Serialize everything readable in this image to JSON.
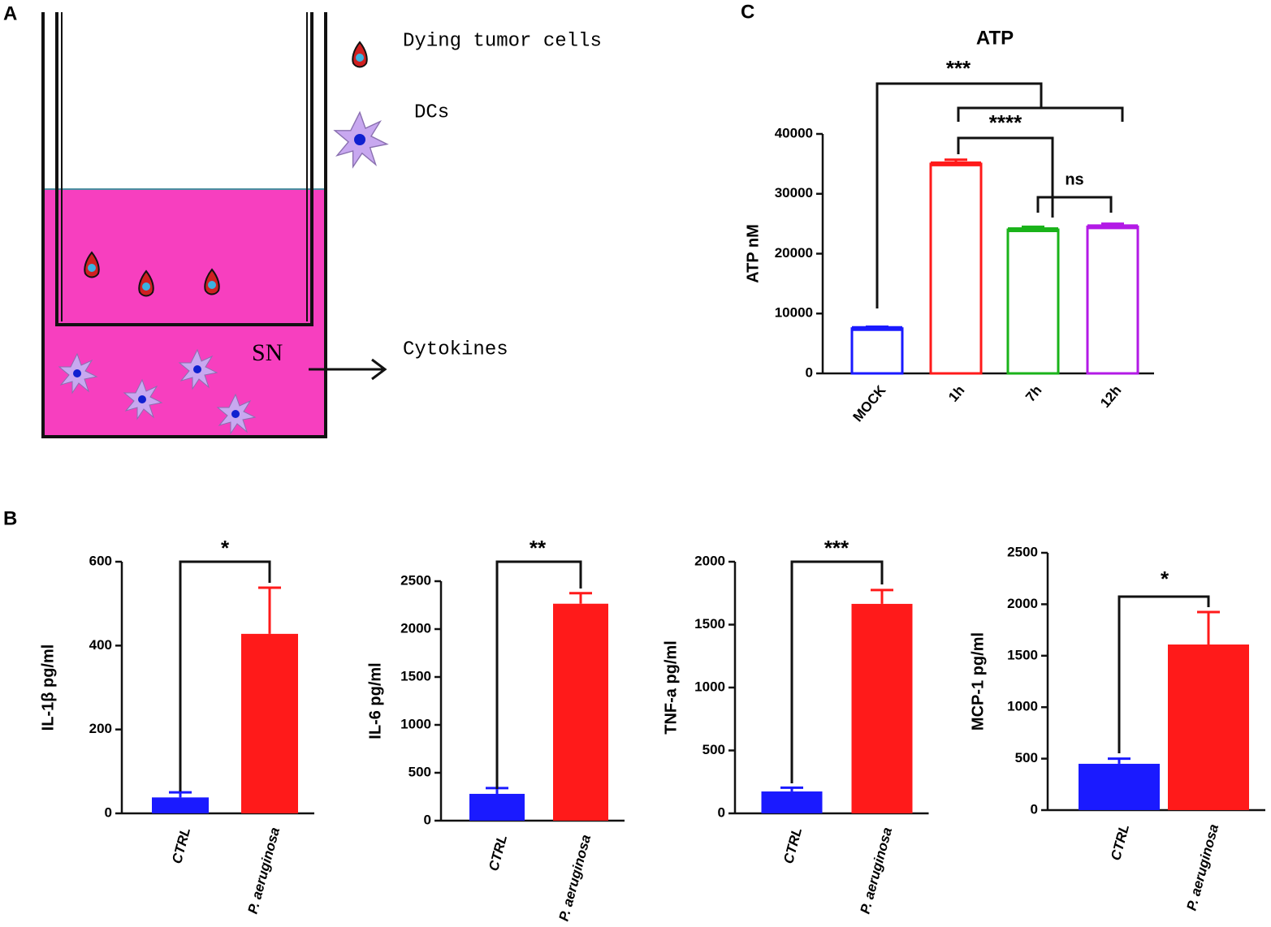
{
  "panel_labels": [
    "A",
    "B",
    "C"
  ],
  "diagram": {
    "labels": [
      "Dying tumor cells",
      "DCs",
      "SN",
      "Cytokines"
    ]
  },
  "chart_data": [
    {
      "type": "bar",
      "title": "ATP",
      "ylabel": "ATP nM",
      "bar_style": "outline",
      "categories": [
        "MOCK",
        "1h",
        "7h",
        "12h"
      ],
      "values": [
        7500,
        35000,
        24000,
        24500
      ],
      "errors": [
        300,
        700,
        500,
        500
      ],
      "colors": [
        "#1a1aff",
        "#ff1a1a",
        "#1ab31a",
        "#b31ae6"
      ],
      "ylim": [
        0,
        40000
      ],
      "yticks": [
        0,
        10000,
        20000,
        30000,
        40000
      ],
      "annotations": [
        "***",
        "****",
        "ns"
      ]
    },
    {
      "type": "bar",
      "ylabel": "IL-1β pg/ml",
      "bar_style": "solid",
      "categories": [
        "CTRL",
        "P. aeruginosa"
      ],
      "values": [
        38,
        428
      ],
      "errors": [
        12,
        110
      ],
      "colors": [
        "#1a1aff",
        "#ff1a1a"
      ],
      "ylim": [
        0,
        600
      ],
      "yticks": [
        0,
        200,
        400,
        600
      ],
      "annotations": [
        "*"
      ]
    },
    {
      "type": "bar",
      "ylabel": "IL-6 pg/ml",
      "bar_style": "solid",
      "categories": [
        "CTRL",
        "P. aeruginosa"
      ],
      "values": [
        280,
        2265
      ],
      "errors": [
        60,
        110
      ],
      "colors": [
        "#1a1aff",
        "#ff1a1a"
      ],
      "ylim": [
        0,
        2500
      ],
      "yticks": [
        0,
        500,
        1000,
        1500,
        2000,
        2500
      ],
      "annotations": [
        "**"
      ]
    },
    {
      "type": "bar",
      "ylabel": "TNF-a pg/ml",
      "bar_style": "solid",
      "categories": [
        "CTRL",
        "P. aeruginosa"
      ],
      "values": [
        174,
        1665
      ],
      "errors": [
        30,
        110
      ],
      "colors": [
        "#1a1aff",
        "#ff1a1a"
      ],
      "ylim": [
        0,
        2000
      ],
      "yticks": [
        0,
        500,
        1000,
        1500,
        2000
      ],
      "annotations": [
        "***"
      ]
    },
    {
      "type": "bar",
      "ylabel": "MCP-1 pg/ml",
      "bar_style": "solid",
      "categories": [
        "CTRL",
        "P. aeruginosa"
      ],
      "values": [
        450,
        1609
      ],
      "errors": [
        50,
        315
      ],
      "colors": [
        "#1a1aff",
        "#ff1a1a"
      ],
      "ylim": [
        0,
        2500
      ],
      "yticks": [
        0,
        500,
        1000,
        1500,
        2000,
        2500
      ],
      "annotations": [
        "*"
      ]
    }
  ]
}
